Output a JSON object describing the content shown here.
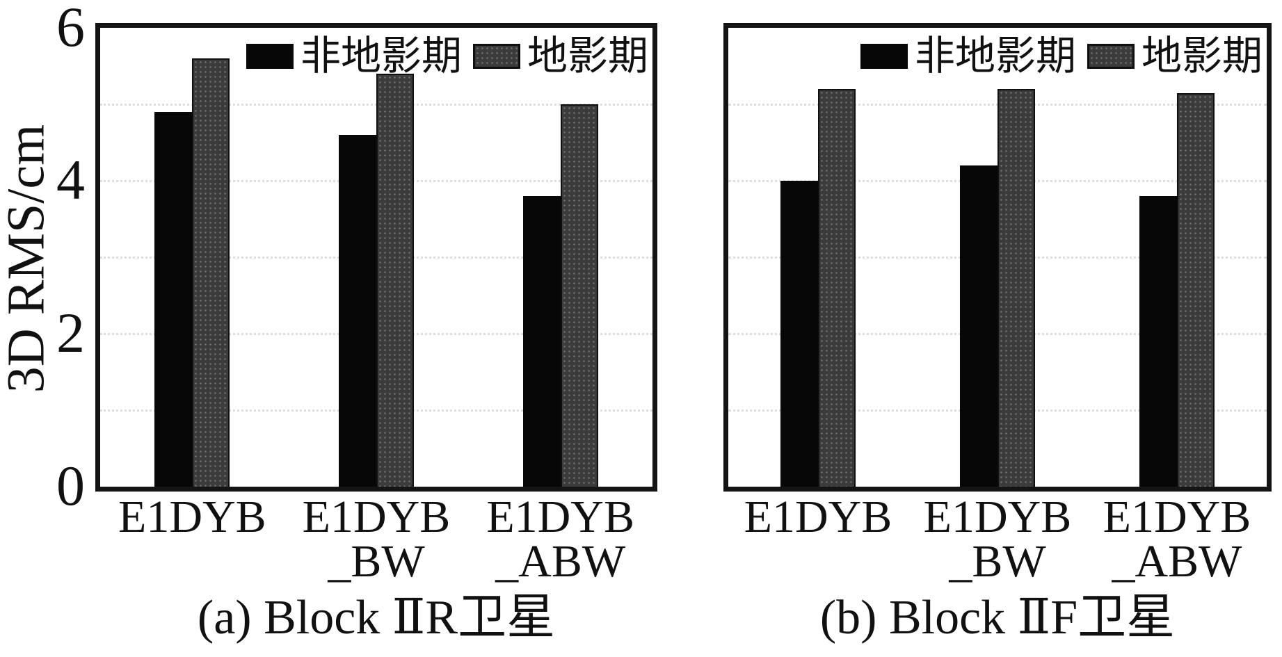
{
  "axis": {
    "ylabel": "3D RMS/cm",
    "ylim": [
      0,
      6
    ],
    "yticks": [
      {
        "label": "0",
        "value": 0
      },
      {
        "label": "2",
        "value": 2
      },
      {
        "label": "4",
        "value": 4
      },
      {
        "label": "6",
        "value": 6
      }
    ],
    "gridline_values": [
      1,
      2,
      3,
      4,
      5
    ]
  },
  "legend": {
    "items": [
      {
        "label": "非地影期",
        "style": "black",
        "color": "#070707"
      },
      {
        "label": "地影期",
        "style": "gray",
        "color": "#3b3b3b"
      }
    ]
  },
  "chart_data": [
    {
      "type": "bar",
      "caption": "(a) Block ⅡR卫星",
      "ylabel": "3D RMS/cm",
      "ylim": [
        0,
        6
      ],
      "grid": "dotted horizontal lines at integers 1-5",
      "legend_position": "upper right",
      "categories": [
        "E1DYB",
        "E1DYB_BW",
        "E1DYB_ABW"
      ],
      "category_display_lines": [
        [
          "E1DYB"
        ],
        [
          "E1DYB",
          "_BW"
        ],
        [
          "E1DYB",
          "_ABW"
        ]
      ],
      "series": [
        {
          "name": "非地影期",
          "color": "#070707",
          "values": [
            4.9,
            4.6,
            3.8
          ]
        },
        {
          "name": "地影期",
          "color": "#3b3b3b",
          "values": [
            5.6,
            5.4,
            5.0
          ]
        }
      ]
    },
    {
      "type": "bar",
      "caption": "(b) Block ⅡF卫星",
      "ylabel": "3D RMS/cm",
      "ylim": [
        0,
        6
      ],
      "grid": "dotted horizontal lines at integers 1-5",
      "legend_position": "upper right",
      "categories": [
        "E1DYB",
        "E1DYB_BW",
        "E1DYB_ABW"
      ],
      "category_display_lines": [
        [
          "E1DYB"
        ],
        [
          "E1DYB",
          "_BW"
        ],
        [
          "E1DYB",
          "_ABW"
        ]
      ],
      "series": [
        {
          "name": "非地影期",
          "color": "#070707",
          "values": [
            4.0,
            4.2,
            3.8
          ]
        },
        {
          "name": "地影期",
          "color": "#3b3b3b",
          "values": [
            5.2,
            5.2,
            5.15
          ]
        }
      ]
    }
  ]
}
